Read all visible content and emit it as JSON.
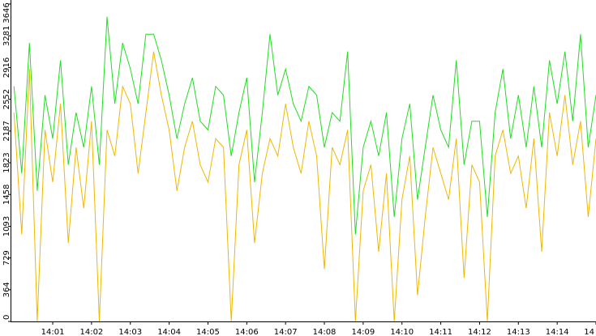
{
  "chart_data": {
    "type": "line",
    "x": [
      0,
      12,
      24,
      36,
      48,
      60,
      72,
      84,
      96,
      108,
      120,
      132,
      144,
      156,
      168,
      180,
      192,
      204,
      216,
      228,
      240,
      252,
      264,
      276,
      288,
      300,
      312,
      324,
      336,
      348,
      360,
      372,
      384,
      396,
      408,
      420,
      432,
      444,
      456,
      468,
      480,
      492,
      504,
      516,
      528,
      540,
      552,
      564,
      576,
      588,
      600,
      612,
      624,
      636,
      648,
      660,
      672,
      684,
      696,
      708,
      720,
      732,
      744,
      756,
      768,
      780,
      792,
      804,
      816,
      828,
      840,
      852,
      864,
      876,
      888,
      900
    ],
    "series": [
      {
        "color": "#22dd22",
        "values": [
          2700,
          1700,
          3200,
          1500,
          2600,
          2100,
          3000,
          1800,
          2400,
          2000,
          2700,
          1800,
          3500,
          2500,
          3200,
          2900,
          2500,
          3300,
          3300,
          3000,
          2600,
          2100,
          2500,
          2800,
          2300,
          2200,
          2700,
          2600,
          1900,
          2400,
          2800,
          1600,
          2400,
          3300,
          2600,
          2900,
          2500,
          2300,
          2700,
          2600,
          2000,
          2400,
          2300,
          3100,
          1000,
          2000,
          2300,
          1900,
          2400,
          1200,
          2100,
          2500,
          1400,
          2000,
          2600,
          2200,
          2000,
          3000,
          1800,
          2300,
          2300,
          1200,
          2400,
          2900,
          2100,
          2600,
          2000,
          2700,
          2000,
          3000,
          2500,
          3100,
          2300,
          3300,
          2000,
          2600
        ]
      },
      {
        "color": "#f0b800",
        "values": [
          2400,
          1000,
          2900,
          0,
          2200,
          1600,
          2500,
          900,
          2000,
          1300,
          2300,
          0,
          2200,
          1900,
          2700,
          2500,
          1700,
          2400,
          3100,
          2600,
          2200,
          1500,
          2000,
          2300,
          1800,
          1600,
          2100,
          2000,
          0,
          1800,
          2200,
          900,
          1700,
          2100,
          1900,
          2500,
          2000,
          1700,
          2300,
          1900,
          600,
          2000,
          1800,
          2200,
          0,
          1500,
          1800,
          800,
          1700,
          0,
          1400,
          1900,
          300,
          1200,
          2000,
          1700,
          1400,
          2100,
          500,
          1800,
          1600,
          0,
          1900,
          2200,
          1700,
          1900,
          1300,
          2100,
          800,
          2400,
          1900,
          2600,
          1800,
          2300,
          1200,
          2100
        ]
      }
    ],
    "xlim": [
      -4,
      900
    ],
    "xticks": [
      {
        "value": 60,
        "label": "14:01"
      },
      {
        "value": 120,
        "label": "14:02"
      },
      {
        "value": 180,
        "label": "14:03"
      },
      {
        "value": 240,
        "label": "14:04"
      },
      {
        "value": 300,
        "label": "14:05"
      },
      {
        "value": 360,
        "label": "14:06"
      },
      {
        "value": 420,
        "label": "14:07"
      },
      {
        "value": 480,
        "label": "14:08"
      },
      {
        "value": 540,
        "label": "14:09"
      },
      {
        "value": 600,
        "label": "14:10"
      },
      {
        "value": 660,
        "label": "14:11"
      },
      {
        "value": 720,
        "label": "14:12"
      },
      {
        "value": 780,
        "label": "14:13"
      },
      {
        "value": 840,
        "label": "14:14"
      },
      {
        "value": 900,
        "label": "14"
      }
    ],
    "ylim": [
      0,
      3646
    ],
    "yticks": [
      0,
      364,
      729,
      1093,
      1458,
      1823,
      2187,
      2552,
      2916,
      3281,
      3646
    ],
    "grid": false
  }
}
